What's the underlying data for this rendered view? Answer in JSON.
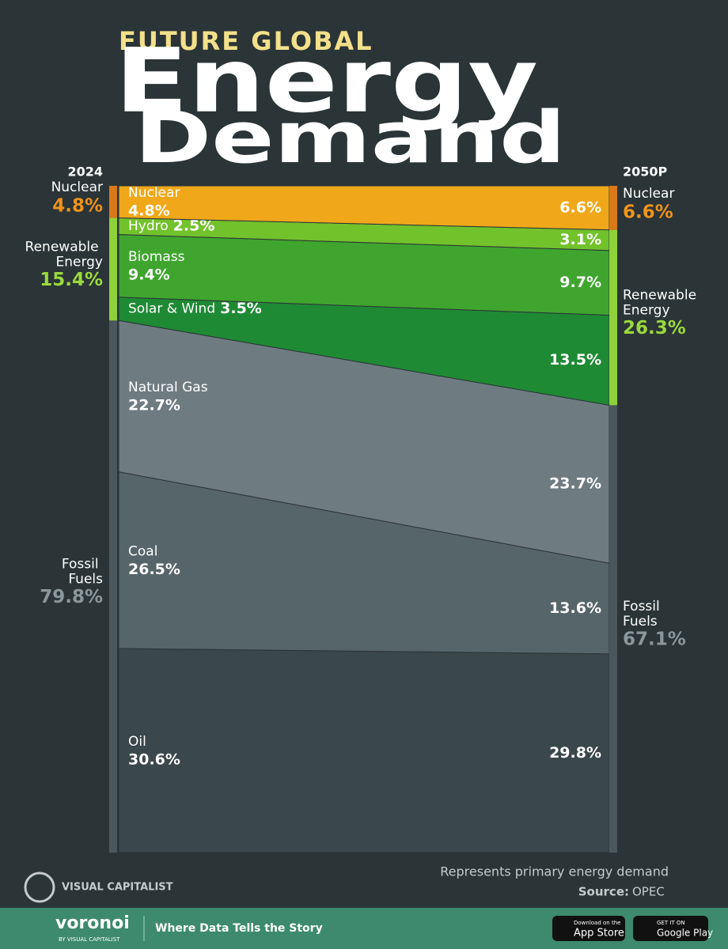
{
  "header": {
    "kicker": "FUTURE GLOBAL",
    "title_line1": "Energy",
    "title_line2": "Demand"
  },
  "chart_data": {
    "type": "area",
    "categories": [
      "2024",
      "2050P"
    ],
    "series": [
      {
        "name": "Oil",
        "color": "#3a474b",
        "values": [
          30.6,
          29.8
        ],
        "value_labels": [
          "30.6%",
          "29.8%"
        ]
      },
      {
        "name": "Coal",
        "color": "#56656a",
        "values": [
          26.5,
          13.6
        ],
        "value_labels": [
          "26.5%",
          "13.6%"
        ]
      },
      {
        "name": "Natural Gas",
        "color": "#6e7c81",
        "values": [
          22.7,
          23.7
        ],
        "value_labels": [
          "22.7%",
          "23.7%"
        ]
      },
      {
        "name": "Solar & Wind",
        "color": "#1f8a34",
        "values": [
          3.5,
          13.5
        ],
        "value_labels": [
          "3.5%",
          "13.5%"
        ]
      },
      {
        "name": "Biomass",
        "color": "#3fa52e",
        "values": [
          9.4,
          9.7
        ],
        "value_labels": [
          "9.4%",
          "9.7%"
        ]
      },
      {
        "name": "Hydro",
        "color": "#72c22c",
        "values": [
          2.5,
          3.1
        ],
        "value_labels": [
          "2.5%",
          "3.1%"
        ]
      },
      {
        "name": "Nuclear",
        "color": "#f0a81a",
        "values": [
          4.8,
          6.6
        ],
        "value_labels": [
          "4.8%",
          "6.6%"
        ]
      }
    ],
    "groups": [
      {
        "name": "Fossil Fuels",
        "color": "#8a989c",
        "bar_color": "#4a585c",
        "values": [
          79.8,
          67.1
        ],
        "value_labels": [
          "79.8%",
          "67.1%"
        ]
      },
      {
        "name": "Renewable Energy",
        "color": "#9ad93c",
        "bar_color": "#8fd13a",
        "values": [
          15.4,
          26.3
        ],
        "value_labels": [
          "15.4%",
          "26.3%"
        ]
      },
      {
        "name": "Nuclear",
        "color": "#f0941a",
        "bar_color": "#d9791a",
        "values": [
          4.8,
          6.6
        ],
        "value_labels": [
          "4.8%",
          "6.6%"
        ]
      }
    ]
  },
  "notes": {
    "description": "Represents primary energy demand",
    "source_label": "Source:",
    "source": "OPEC"
  },
  "footer": {
    "logo": "VISUAL CAPITALIST",
    "brand": "voronoi",
    "brand_sub": "BY VISUAL CAPITALIST",
    "tagline": "Where Data Tells the Story",
    "app_store_small": "Download on the",
    "app_store": "App Store",
    "play_small": "GET IT ON",
    "play": "Google Play"
  }
}
